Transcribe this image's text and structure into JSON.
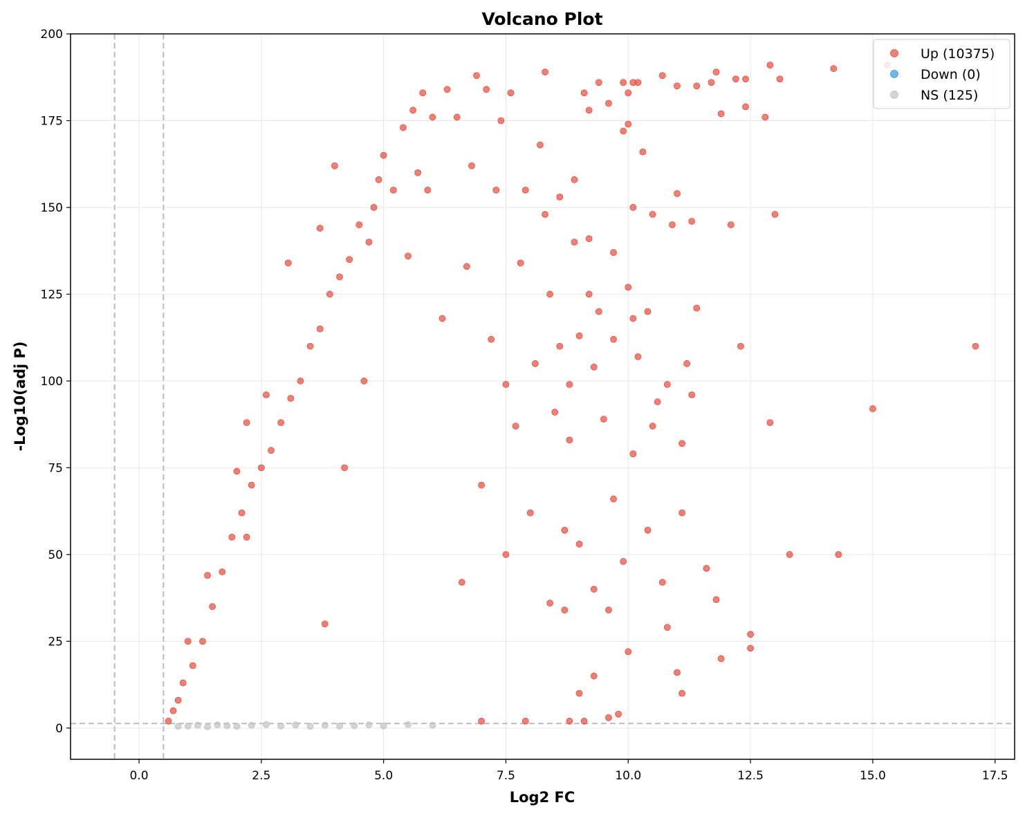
{
  "chart_data": {
    "type": "scatter",
    "title": "Volcano Plot",
    "xlabel": "Log2 FC",
    "ylabel": "-Log10(adj P)",
    "xlim": [
      -1.4,
      17.9
    ],
    "ylim": [
      -9,
      200
    ],
    "xticks": [
      0.0,
      2.5,
      5.0,
      7.5,
      10.0,
      12.5,
      15.0,
      17.5
    ],
    "xtick_labels": [
      "0.0",
      "2.5",
      "5.0",
      "7.5",
      "10.0",
      "12.5",
      "15.0",
      "17.5"
    ],
    "yticks": [
      0,
      25,
      50,
      75,
      100,
      125,
      150,
      175,
      200
    ],
    "ytick_labels": [
      "0",
      "25",
      "50",
      "75",
      "100",
      "125",
      "150",
      "175",
      "200"
    ],
    "grid": true,
    "legend_position": "top-right",
    "thresholds": {
      "log2fc_vlines": [
        -0.5,
        0.5
      ],
      "neg_log10_p_hline": 1.3
    },
    "colors": {
      "up": "#e74c3c",
      "down": "#3498db",
      "ns": "#bdc3c7",
      "threshold_line": "#bbbbbb"
    },
    "series": [
      {
        "name": "Up (10375)",
        "category": "up",
        "count": 10375,
        "points": [
          [
            17.1,
            110
          ],
          [
            15.3,
            191
          ],
          [
            14.3,
            50
          ],
          [
            14.2,
            190
          ],
          [
            15.0,
            92
          ],
          [
            13.3,
            50
          ],
          [
            12.9,
            191
          ],
          [
            13.1,
            187
          ],
          [
            12.4,
            187
          ],
          [
            12.2,
            187
          ],
          [
            12.8,
            176
          ],
          [
            12.4,
            179
          ],
          [
            12.3,
            110
          ],
          [
            12.9,
            88
          ],
          [
            12.5,
            27
          ],
          [
            12.5,
            23
          ],
          [
            11.9,
            20
          ],
          [
            11.8,
            189
          ],
          [
            11.7,
            186
          ],
          [
            11.9,
            177
          ],
          [
            12.1,
            145
          ],
          [
            13.0,
            148
          ],
          [
            11.6,
            46
          ],
          [
            11.8,
            37
          ],
          [
            11.4,
            185
          ],
          [
            11.4,
            121
          ],
          [
            11.3,
            146
          ],
          [
            11.3,
            96
          ],
          [
            11.1,
            82
          ],
          [
            11.1,
            62
          ],
          [
            11.2,
            105
          ],
          [
            11.0,
            16
          ],
          [
            11.1,
            10
          ],
          [
            11.0,
            185
          ],
          [
            11.0,
            154
          ],
          [
            10.9,
            145
          ],
          [
            10.8,
            99
          ],
          [
            10.8,
            29
          ],
          [
            10.7,
            188
          ],
          [
            10.7,
            42
          ],
          [
            10.6,
            94
          ],
          [
            10.5,
            148
          ],
          [
            10.4,
            57
          ],
          [
            10.4,
            120
          ],
          [
            10.5,
            87
          ],
          [
            10.2,
            186
          ],
          [
            10.3,
            166
          ],
          [
            10.2,
            107
          ],
          [
            10.1,
            186
          ],
          [
            10.1,
            150
          ],
          [
            10.1,
            118
          ],
          [
            10.0,
            183
          ],
          [
            10.0,
            174
          ],
          [
            10.1,
            79
          ],
          [
            10.0,
            127
          ],
          [
            10.0,
            22
          ],
          [
            9.9,
            186
          ],
          [
            9.9,
            172
          ],
          [
            9.9,
            48
          ],
          [
            9.8,
            4
          ],
          [
            9.6,
            3
          ],
          [
            9.7,
            137
          ],
          [
            9.7,
            112
          ],
          [
            9.7,
            66
          ],
          [
            9.6,
            180
          ],
          [
            9.6,
            34
          ],
          [
            9.4,
            186
          ],
          [
            9.5,
            89
          ],
          [
            9.4,
            120
          ],
          [
            9.3,
            104
          ],
          [
            9.3,
            40
          ],
          [
            9.3,
            15
          ],
          [
            9.2,
            178
          ],
          [
            9.2,
            125
          ],
          [
            9.2,
            141
          ],
          [
            9.1,
            183
          ],
          [
            9.0,
            113
          ],
          [
            9.0,
            53
          ],
          [
            9.0,
            10
          ],
          [
            8.9,
            158
          ],
          [
            8.9,
            140
          ],
          [
            8.8,
            99
          ],
          [
            8.8,
            83
          ],
          [
            8.7,
            57
          ],
          [
            8.7,
            34
          ],
          [
            8.6,
            153
          ],
          [
            8.6,
            110
          ],
          [
            8.5,
            91
          ],
          [
            8.4,
            125
          ],
          [
            8.4,
            36
          ],
          [
            8.3,
            189
          ],
          [
            8.3,
            148
          ],
          [
            8.2,
            168
          ],
          [
            8.1,
            105
          ],
          [
            8.0,
            62
          ],
          [
            7.9,
            155
          ],
          [
            7.8,
            134
          ],
          [
            7.7,
            87
          ],
          [
            7.6,
            183
          ],
          [
            7.5,
            99
          ],
          [
            7.5,
            50
          ],
          [
            7.4,
            175
          ],
          [
            7.3,
            155
          ],
          [
            7.2,
            112
          ],
          [
            7.1,
            184
          ],
          [
            7.0,
            70
          ],
          [
            6.9,
            188
          ],
          [
            6.8,
            162
          ],
          [
            6.7,
            133
          ],
          [
            6.6,
            42
          ],
          [
            6.5,
            176
          ],
          [
            6.3,
            184
          ],
          [
            6.2,
            118
          ],
          [
            6.0,
            176
          ],
          [
            5.9,
            155
          ],
          [
            5.8,
            183
          ],
          [
            5.7,
            160
          ],
          [
            5.6,
            178
          ],
          [
            5.5,
            136
          ],
          [
            5.4,
            173
          ],
          [
            5.2,
            155
          ],
          [
            5.0,
            165
          ],
          [
            4.9,
            158
          ],
          [
            4.8,
            150
          ],
          [
            4.7,
            140
          ],
          [
            4.5,
            145
          ],
          [
            4.3,
            135
          ],
          [
            4.1,
            130
          ],
          [
            3.9,
            125
          ],
          [
            3.7,
            115
          ],
          [
            3.5,
            110
          ],
          [
            3.3,
            100
          ],
          [
            3.1,
            95
          ],
          [
            3.05,
            134
          ],
          [
            2.9,
            88
          ],
          [
            2.7,
            80
          ],
          [
            2.5,
            75
          ],
          [
            2.3,
            70
          ],
          [
            2.1,
            62
          ],
          [
            2.0,
            74
          ],
          [
            1.9,
            55
          ],
          [
            1.7,
            45
          ],
          [
            1.5,
            35
          ],
          [
            1.4,
            44
          ],
          [
            1.3,
            25
          ],
          [
            1.1,
            18
          ],
          [
            1.0,
            25
          ],
          [
            0.9,
            13
          ],
          [
            0.8,
            8
          ],
          [
            0.7,
            5
          ],
          [
            0.6,
            2
          ],
          [
            2.2,
            88
          ],
          [
            2.6,
            96
          ],
          [
            4.0,
            162
          ],
          [
            3.7,
            144
          ],
          [
            8.8,
            2
          ],
          [
            9.1,
            2
          ],
          [
            7.9,
            2
          ],
          [
            7.0,
            2
          ],
          [
            2.2,
            55
          ],
          [
            3.8,
            30
          ],
          [
            4.2,
            75
          ],
          [
            4.6,
            100
          ]
        ]
      },
      {
        "name": "Down (0)",
        "category": "down",
        "count": 0,
        "points": []
      },
      {
        "name": "NS (125)",
        "category": "ns",
        "count": 125,
        "points": [
          [
            0.8,
            0.5
          ],
          [
            1.0,
            0.6
          ],
          [
            1.2,
            0.8
          ],
          [
            1.4,
            0.4
          ],
          [
            1.6,
            0.9
          ],
          [
            1.8,
            0.7
          ],
          [
            2.0,
            0.5
          ],
          [
            2.3,
            0.8
          ],
          [
            2.6,
            1.0
          ],
          [
            2.9,
            0.6
          ],
          [
            3.2,
            0.9
          ],
          [
            3.5,
            0.5
          ],
          [
            3.8,
            0.8
          ],
          [
            4.1,
            0.6
          ],
          [
            4.4,
            0.7
          ],
          [
            4.7,
            0.9
          ],
          [
            5.0,
            0.6
          ],
          [
            5.5,
            1.0
          ],
          [
            6.0,
            0.8
          ]
        ]
      }
    ]
  }
}
